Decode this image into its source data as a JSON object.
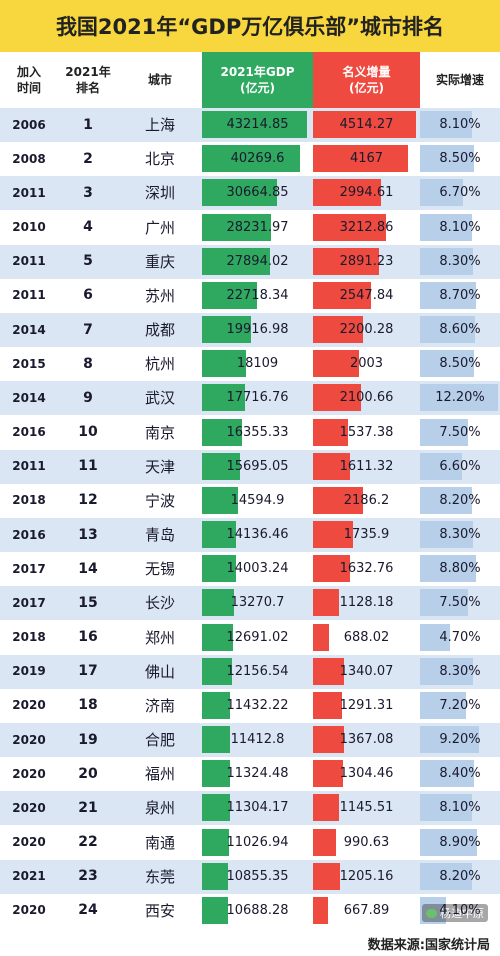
{
  "chart_data": {
    "type": "table",
    "title": "我国2021年“GDP万亿俱乐部”城市排名",
    "columns": [
      "加入\n时间",
      "2021年\n排名",
      "城市",
      "2021年GDP\n(亿元)",
      "名义增量\n(亿元)",
      "实际增速"
    ],
    "rows": [
      {
        "join_year": "2006",
        "rank": "1",
        "city": "上海",
        "gdp": 43214.85,
        "gdp_text": "43214.85",
        "increase": 4514.27,
        "increase_text": "4514.27",
        "growth": "8.10%"
      },
      {
        "join_year": "2008",
        "rank": "2",
        "city": "北京",
        "gdp": 40269.6,
        "gdp_text": "40269.6",
        "increase": 4167,
        "increase_text": "4167",
        "growth": "8.50%"
      },
      {
        "join_year": "2011",
        "rank": "3",
        "city": "深圳",
        "gdp": 30664.85,
        "gdp_text": "30664.85",
        "increase": 2994.61,
        "increase_text": "2994.61",
        "growth": "6.70%"
      },
      {
        "join_year": "2010",
        "rank": "4",
        "city": "广州",
        "gdp": 28231.97,
        "gdp_text": "28231.97",
        "increase": 3212.86,
        "increase_text": "3212.86",
        "growth": "8.10%"
      },
      {
        "join_year": "2011",
        "rank": "5",
        "city": "重庆",
        "gdp": 27894.02,
        "gdp_text": "27894.02",
        "increase": 2891.23,
        "increase_text": "2891.23",
        "growth": "8.30%"
      },
      {
        "join_year": "2011",
        "rank": "6",
        "city": "苏州",
        "gdp": 22718.34,
        "gdp_text": "22718.34",
        "increase": 2547.84,
        "increase_text": "2547.84",
        "growth": "8.70%"
      },
      {
        "join_year": "2014",
        "rank": "7",
        "city": "成都",
        "gdp": 19916.98,
        "gdp_text": "19916.98",
        "increase": 2200.28,
        "increase_text": "2200.28",
        "growth": "8.60%"
      },
      {
        "join_year": "2015",
        "rank": "8",
        "city": "杭州",
        "gdp": 18109,
        "gdp_text": "18109",
        "increase": 2003,
        "increase_text": "2003",
        "growth": "8.50%"
      },
      {
        "join_year": "2014",
        "rank": "9",
        "city": "武汉",
        "gdp": 17716.76,
        "gdp_text": "17716.76",
        "increase": 2100.66,
        "increase_text": "2100.66",
        "growth": "12.20%"
      },
      {
        "join_year": "2016",
        "rank": "10",
        "city": "南京",
        "gdp": 16355.33,
        "gdp_text": "16355.33",
        "increase": 1537.38,
        "increase_text": "1537.38",
        "growth": "7.50%"
      },
      {
        "join_year": "2011",
        "rank": "11",
        "city": "天津",
        "gdp": 15695.05,
        "gdp_text": "15695.05",
        "increase": 1611.32,
        "increase_text": "1611.32",
        "growth": "6.60%"
      },
      {
        "join_year": "2018",
        "rank": "12",
        "city": "宁波",
        "gdp": 14594.9,
        "gdp_text": "14594.9",
        "increase": 2186.2,
        "increase_text": "2186.2",
        "growth": "8.20%"
      },
      {
        "join_year": "2016",
        "rank": "13",
        "city": "青岛",
        "gdp": 14136.46,
        "gdp_text": "14136.46",
        "increase": 1735.9,
        "increase_text": "1735.9",
        "growth": "8.30%"
      },
      {
        "join_year": "2017",
        "rank": "14",
        "city": "无锡",
        "gdp": 14003.24,
        "gdp_text": "14003.24",
        "increase": 1632.76,
        "increase_text": "1632.76",
        "growth": "8.80%"
      },
      {
        "join_year": "2017",
        "rank": "15",
        "city": "长沙",
        "gdp": 13270.7,
        "gdp_text": "13270.7",
        "increase": 1128.18,
        "increase_text": "1128.18",
        "growth": "7.50%"
      },
      {
        "join_year": "2018",
        "rank": "16",
        "city": "郑州",
        "gdp": 12691.02,
        "gdp_text": "12691.02",
        "increase": 688.02,
        "increase_text": "688.02",
        "growth": "4.70%"
      },
      {
        "join_year": "2019",
        "rank": "17",
        "city": "佛山",
        "gdp": 12156.54,
        "gdp_text": "12156.54",
        "increase": 1340.07,
        "increase_text": "1340.07",
        "growth": "8.30%"
      },
      {
        "join_year": "2020",
        "rank": "18",
        "city": "济南",
        "gdp": 11432.22,
        "gdp_text": "11432.22",
        "increase": 1291.31,
        "increase_text": "1291.31",
        "growth": "7.20%"
      },
      {
        "join_year": "2020",
        "rank": "19",
        "city": "合肥",
        "gdp": 11412.8,
        "gdp_text": "11412.8",
        "increase": 1367.08,
        "increase_text": "1367.08",
        "growth": "9.20%"
      },
      {
        "join_year": "2020",
        "rank": "20",
        "city": "福州",
        "gdp": 11324.48,
        "gdp_text": "11324.48",
        "increase": 1304.46,
        "increase_text": "1304.46",
        "growth": "8.40%"
      },
      {
        "join_year": "2020",
        "rank": "21",
        "city": "泉州",
        "gdp": 11304.17,
        "gdp_text": "11304.17",
        "increase": 1145.51,
        "increase_text": "1145.51",
        "growth": "8.10%"
      },
      {
        "join_year": "2020",
        "rank": "22",
        "city": "南通",
        "gdp": 11026.94,
        "gdp_text": "11026.94",
        "increase": 990.63,
        "increase_text": "990.63",
        "growth": "8.90%"
      },
      {
        "join_year": "2021",
        "rank": "23",
        "city": "东莞",
        "gdp": 10855.35,
        "gdp_text": "10855.35",
        "increase": 1205.16,
        "increase_text": "1205.16",
        "growth": "8.20%"
      },
      {
        "join_year": "2020",
        "rank": "24",
        "city": "西安",
        "gdp": 10688.28,
        "gdp_text": "10688.28",
        "increase": 667.89,
        "increase_text": "667.89",
        "growth": "4.10%"
      }
    ],
    "colors": {
      "title_bg": "#f7d63e",
      "gdp_bar": "#2fa860",
      "increase_bar": "#ee4a3f",
      "row_alt": "#dbe6f4",
      "growth_bg": "#b8cfe9"
    }
  },
  "footer": {
    "source": "数据来源:国家统计局",
    "watermark": "杨迪中原"
  }
}
